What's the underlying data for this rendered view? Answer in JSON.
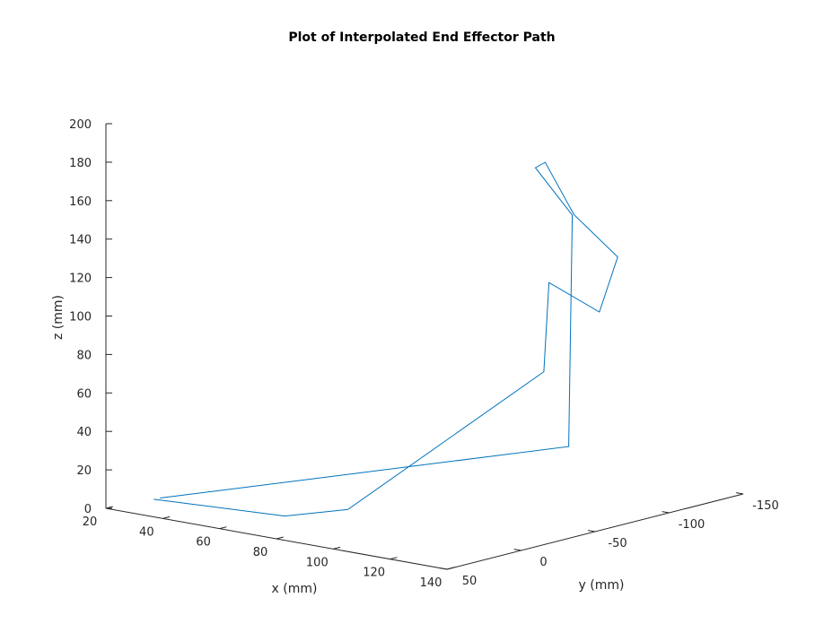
{
  "chart_data": {
    "type": "line3d",
    "title": "Plot of Interpolated End Effector Path",
    "xlabel": "x (mm)",
    "ylabel": "y (mm)",
    "zlabel": "z (mm)",
    "xlim": [
      20,
      140
    ],
    "ylim": [
      -150,
      50
    ],
    "zlim": [
      0,
      200
    ],
    "xticks": [
      "20",
      "40",
      "60",
      "80",
      "100",
      "120",
      "140"
    ],
    "yticks": [
      "50",
      "0",
      "-50",
      "-100",
      "-150"
    ],
    "zticks": [
      "0",
      "20",
      "40",
      "60",
      "80",
      "100",
      "120",
      "140",
      "160",
      "180",
      "200"
    ],
    "series_color": "#0072BD",
    "points": [
      {
        "x": 36.7,
        "y": 49.8,
        "z": 9.1
      },
      {
        "x": 79.6,
        "y": 43.6,
        "z": 10.5
      },
      {
        "x": 96.7,
        "y": 33.8,
        "z": 16.5
      },
      {
        "x": 125.1,
        "y": -44.0,
        "z": 80.4
      },
      {
        "x": 123.3,
        "y": -50.9,
        "z": 124.9
      },
      {
        "x": 124.0,
        "y": -83.6,
        "z": 103.4
      },
      {
        "x": 123.9,
        "y": -96.2,
        "z": 129.5
      },
      {
        "x": 118.9,
        "y": -76.2,
        "z": 154.2
      },
      {
        "x": 116.3,
        "y": -61.8,
        "z": 183.5
      },
      {
        "x": 115.4,
        "y": -56.9,
        "z": 181.4
      },
      {
        "x": 118.9,
        "y": -75.1,
        "z": 154.1
      },
      {
        "x": 125.3,
        "y": -60.4,
        "z": 38.3
      },
      {
        "x": 37.8,
        "y": 47.6,
        "z": 9.6
      }
    ]
  }
}
